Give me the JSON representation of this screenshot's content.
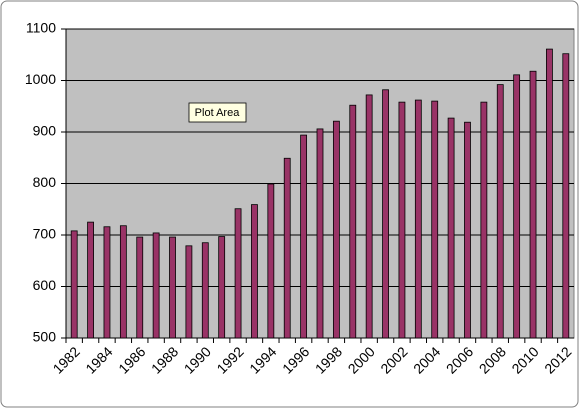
{
  "chart_data": {
    "type": "bar",
    "categories": [
      "1982",
      null,
      "1984",
      null,
      "1986",
      null,
      "1988",
      null,
      "1990",
      null,
      "1992",
      null,
      "1994",
      null,
      "1996",
      null,
      "1998",
      null,
      "2000",
      null,
      "2002",
      null,
      "2004",
      null,
      "2006",
      null,
      "2008",
      null,
      "2010",
      null,
      "2012"
    ],
    "values": [
      708,
      725,
      716,
      718,
      696,
      704,
      696,
      679,
      685,
      697,
      751,
      759,
      799,
      849,
      894,
      906,
      921,
      952,
      972,
      982,
      958,
      962,
      960,
      927,
      919,
      958,
      992,
      1011,
      1018,
      1061,
      1052
    ],
    "color": "#993366",
    "ylim": [
      500,
      1100
    ],
    "yticks": [
      500,
      600,
      700,
      800,
      900,
      1000,
      1100
    ],
    "grid": true
  },
  "tooltip": "Plot Area"
}
